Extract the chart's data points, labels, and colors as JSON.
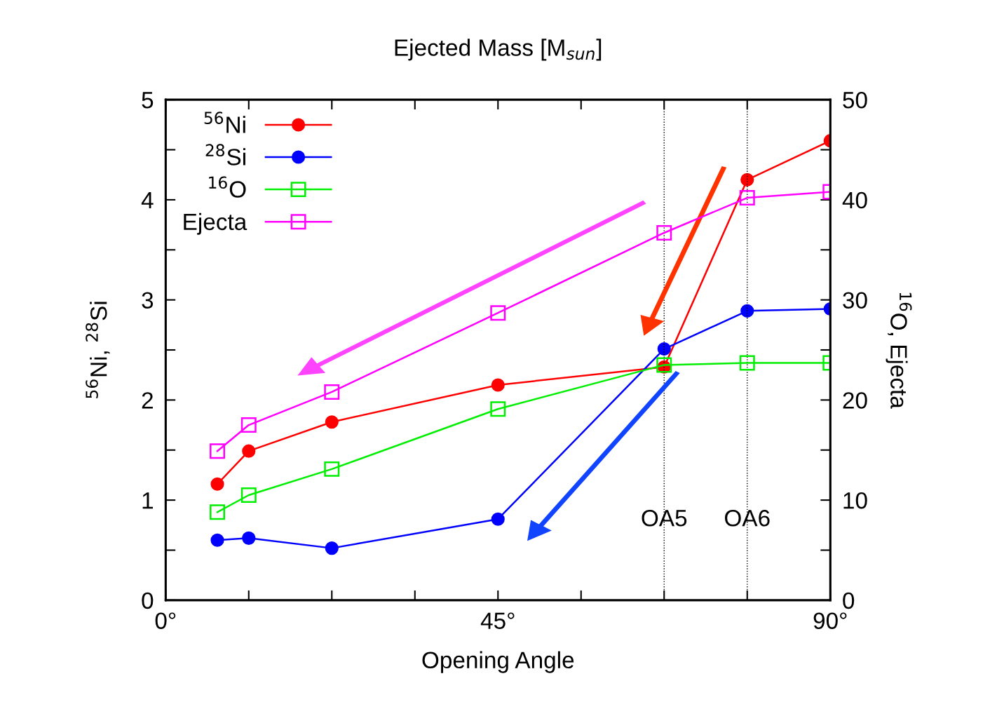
{
  "chart_data": {
    "type": "line",
    "title": "Ejected Mass [M$_{sun}$]",
    "xlabel": "Opening Angle",
    "ylabel": "$^{56}$Ni, $^{28}$Si",
    "y2label": "$^{16}$O, Ejecta",
    "x": [
      7,
      11.25,
      22.5,
      45,
      67.5,
      78.75,
      90
    ],
    "series": [
      {
        "name": "$^{56}$Ni",
        "color": "#ff0000",
        "marker": "circle",
        "values": [
          1.16,
          1.49,
          1.78,
          2.15,
          2.33,
          4.2,
          4.59
        ]
      },
      {
        "name": "$^{28}$Si",
        "color": "#0000ff",
        "marker": "circle",
        "values": [
          0.6,
          0.62,
          0.52,
          0.81,
          2.51,
          2.89,
          2.91
        ]
      },
      {
        "name": "$^{16}$O",
        "color": "#00ee00",
        "marker": "square",
        "axis": "y2",
        "values": [
          8.8,
          10.5,
          13.1,
          19.1,
          23.5,
          23.7,
          23.7
        ]
      },
      {
        "name": "Ejecta",
        "color": "#ff00ff",
        "marker": "square",
        "axis": "y2",
        "values": [
          14.9,
          17.5,
          20.8,
          28.7,
          36.7,
          40.2,
          40.8
        ]
      }
    ],
    "xlim": [
      0,
      90
    ],
    "xticks": [
      {
        "value": 0,
        "label": "0°"
      },
      {
        "value": 11.25,
        "label": null
      },
      {
        "value": 22.5,
        "label": null
      },
      {
        "value": 33.75,
        "label": null
      },
      {
        "value": 45,
        "label": "45°"
      },
      {
        "value": 56.25,
        "label": null
      },
      {
        "value": 67.5,
        "label": null
      },
      {
        "value": 78.75,
        "label": null
      },
      {
        "value": 90,
        "label": "90°"
      }
    ],
    "ylim": [
      0,
      5
    ],
    "yticks": [
      0,
      {
        "value": 0.5,
        "label": null
      },
      1,
      {
        "value": 1.5,
        "label": null
      },
      2,
      {
        "value": 2.5,
        "label": null
      },
      3,
      {
        "value": 3.5,
        "label": null
      },
      4,
      {
        "value": 4.5,
        "label": null
      },
      5
    ],
    "y2lim": [
      0,
      50
    ],
    "y2ticks": [
      0,
      {
        "value": 5,
        "label": null
      },
      10,
      {
        "value": 15,
        "label": null
      },
      20,
      {
        "value": 25,
        "label": null
      },
      30,
      {
        "value": 35,
        "label": null
      },
      40,
      {
        "value": 45,
        "label": null
      },
      50
    ],
    "ref_lines": [
      {
        "axis": "x",
        "value": 67.5,
        "label": "OA5",
        "color": "#000000",
        "line_style": "dotted"
      },
      {
        "axis": "x",
        "value": 78.75,
        "label": "OA6",
        "color": "#000000",
        "line_style": "dotted"
      }
    ],
    "grid": false,
    "legend": "top left",
    "line_style": "solid"
  }
}
